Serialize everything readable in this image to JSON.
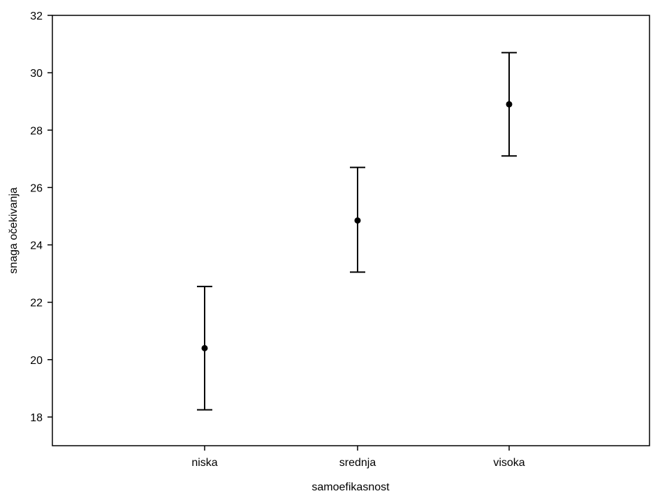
{
  "chart_data": {
    "type": "errorbar",
    "title": "",
    "xlabel": "samoefikasnost",
    "ylabel": "snaga očekivanja",
    "categories": [
      "niska",
      "srednja",
      "visoka"
    ],
    "series": [
      {
        "values": [
          20.4,
          24.85,
          28.9
        ],
        "lower": [
          18.25,
          23.05,
          27.1
        ],
        "upper": [
          22.55,
          26.7,
          30.7
        ]
      }
    ],
    "ylim": [
      17,
      32
    ],
    "yticks": [
      18,
      20,
      22,
      24,
      26,
      28,
      30,
      32
    ],
    "grid": false,
    "colors": {
      "marks": "#000000",
      "axes": "#000000"
    }
  }
}
